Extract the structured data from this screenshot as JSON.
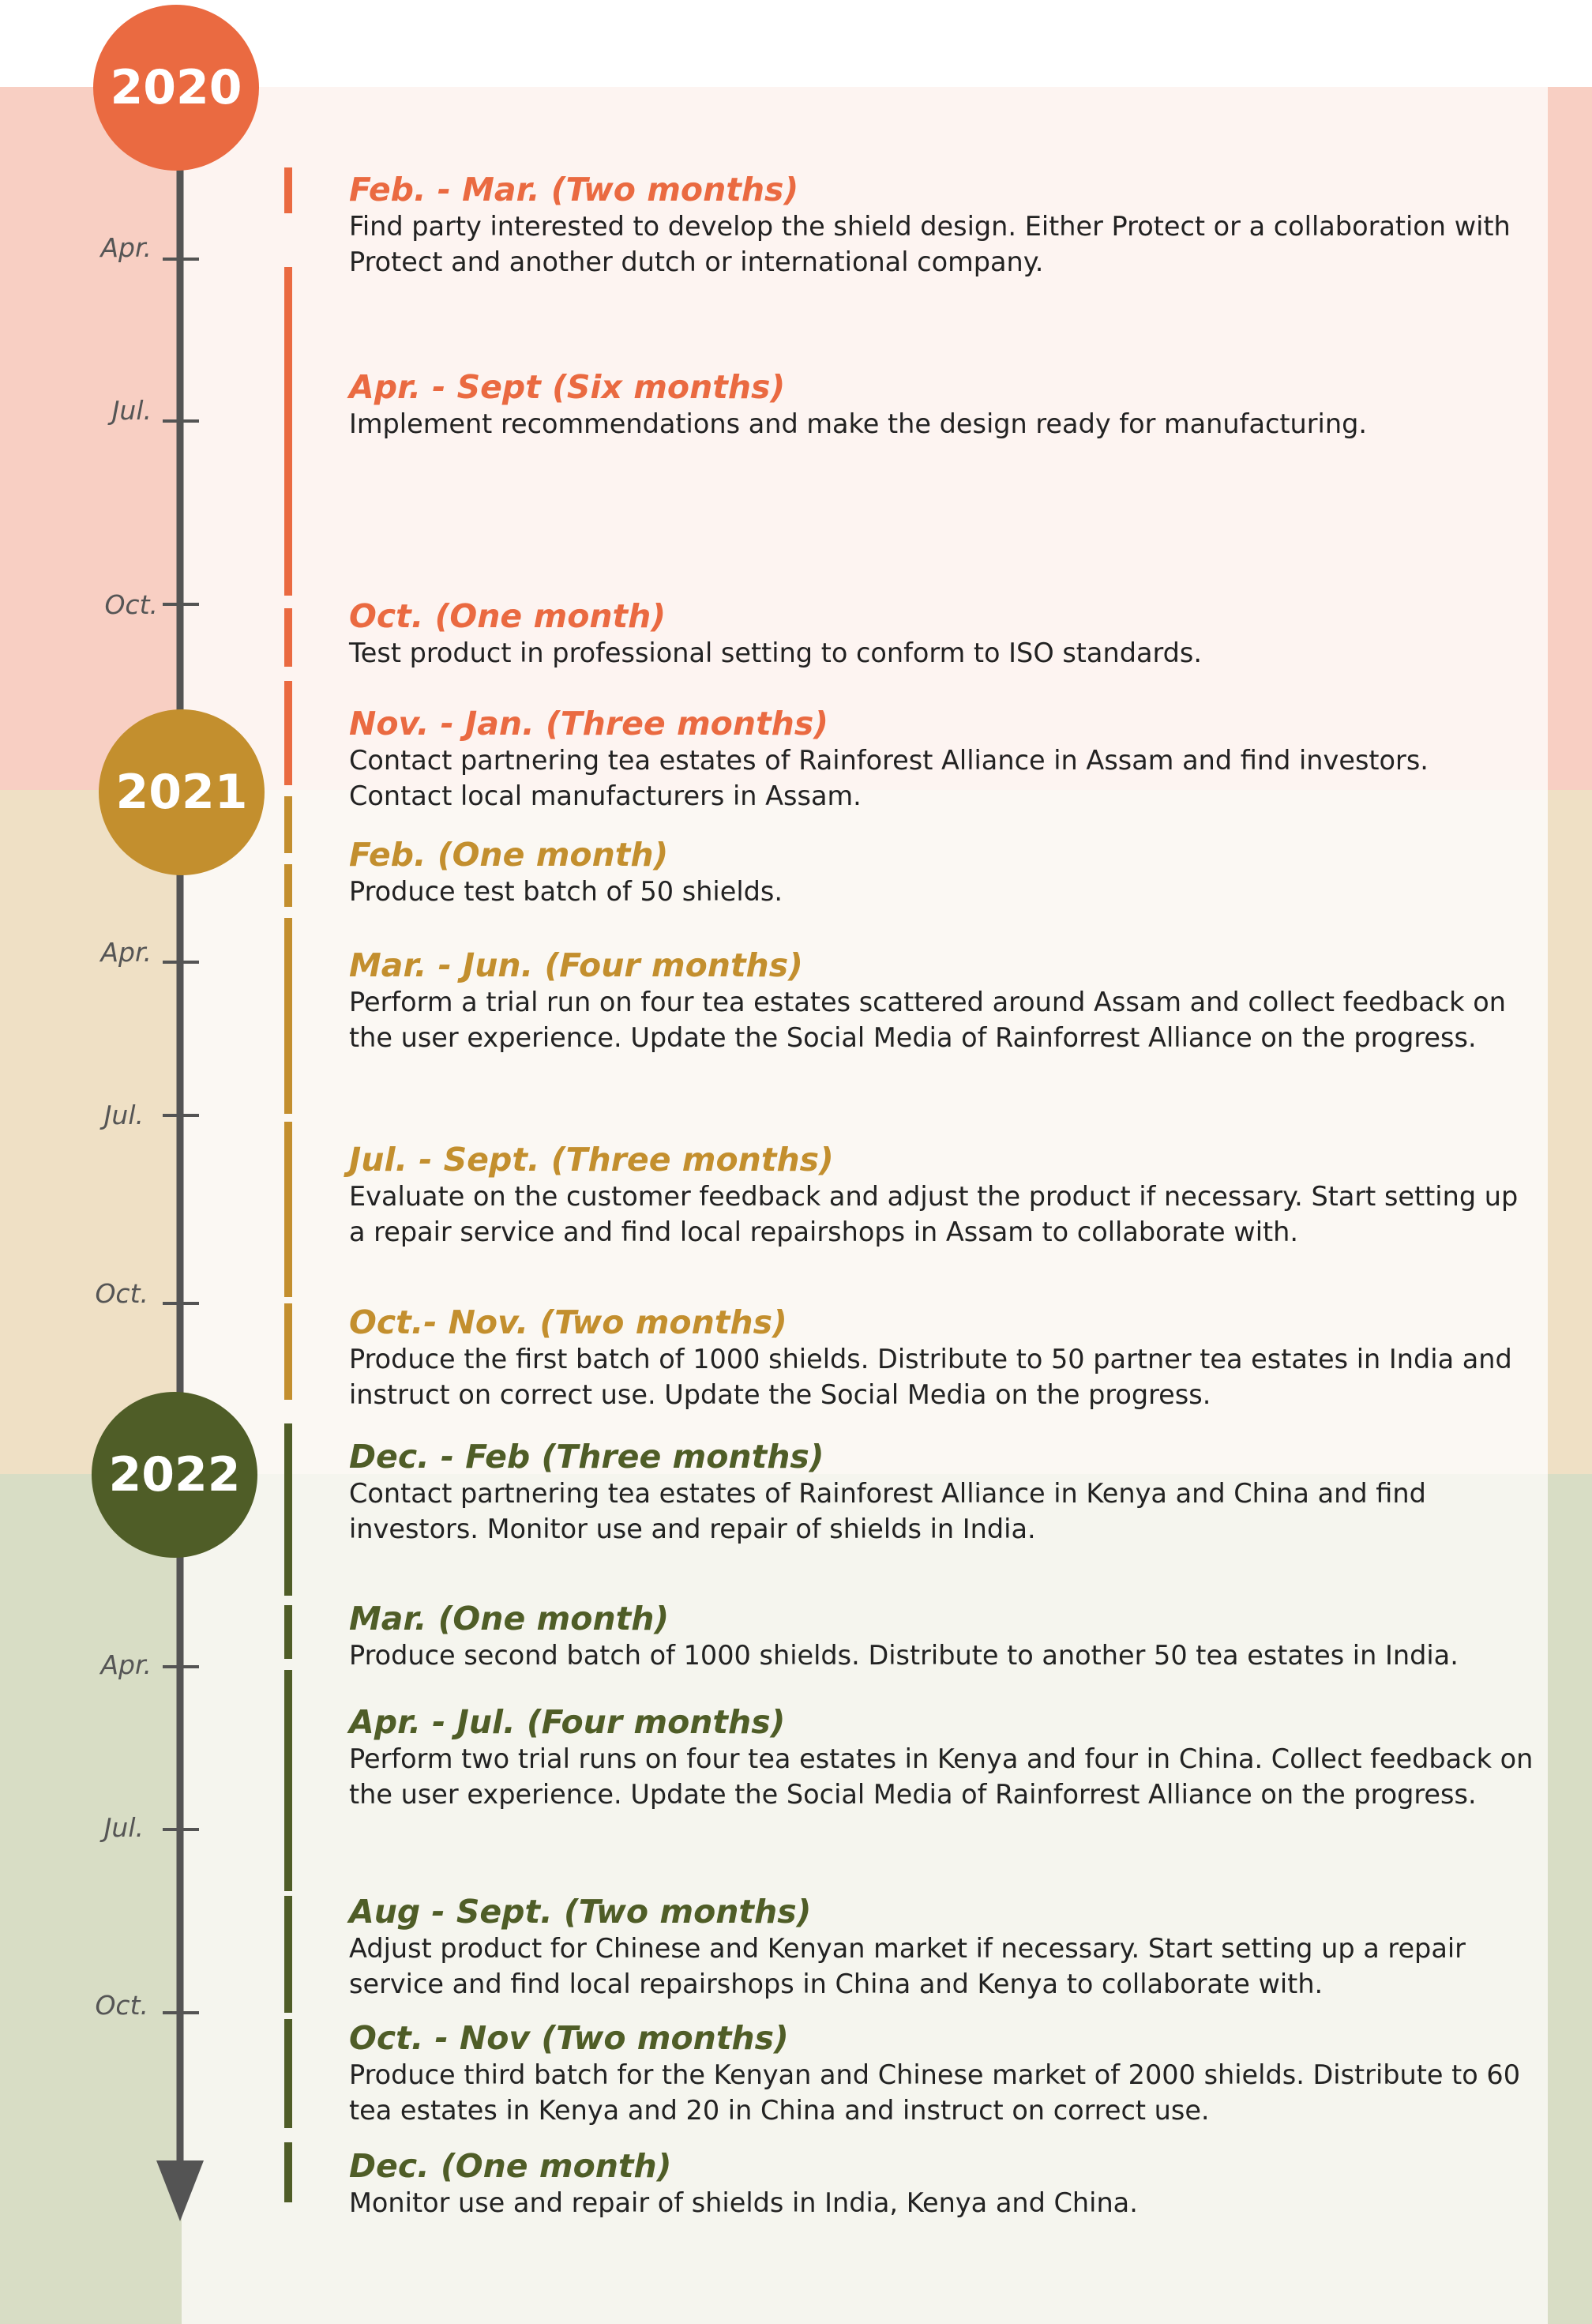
{
  "colors": {
    "2020": "#ea6a41",
    "2021": "#c38f2e",
    "2022": "#4f5d27",
    "axis": "#545454"
  },
  "years": [
    {
      "label": "2020"
    },
    {
      "label": "2021"
    },
    {
      "label": "2022"
    }
  ],
  "month_ticks": [
    "Apr.",
    "Jul.",
    "Oct."
  ],
  "entries": [
    {
      "title": "Feb. - Mar. (Two months)",
      "desc": "Find party interested to develop the shield design. Either Protect or a collaboration with Protect and another dutch or international company."
    },
    {
      "title": "Apr. - Sept (Six months)",
      "desc": "Implement recommendations and make the design ready for manufacturing."
    },
    {
      "title": "Oct. (One month)",
      "desc": "Test product in professional setting to conform to ISO standards."
    },
    {
      "title": "Nov. - Jan. (Three months)",
      "desc": "Contact partnering tea estates of Rainforest Alliance in Assam and find investors. Contact local manufacturers in Assam."
    },
    {
      "title": "Feb. (One month)",
      "desc": "Produce test batch of 50 shields."
    },
    {
      "title": "Mar. - Jun. (Four months)",
      "desc": "Perform a trial run on four tea estates scattered around Assam and collect feedback on the user experience. Update the Social Media of Rainforrest Alliance on the progress."
    },
    {
      "title": "Jul. - Sept. (Three months)",
      "desc": "Evaluate on the customer feedback and adjust the product if necessary. Start setting up a repair service and find local repairshops in Assam to collaborate with."
    },
    {
      "title": "Oct.- Nov. (Two months)",
      "desc": "Produce the first batch of 1000 shields. Distribute to 50 partner tea estates in India and instruct on correct use. Update the Social Media on the progress."
    },
    {
      "title": "Dec. - Feb (Three months)",
      "desc": "Contact partnering tea estates of Rainforest Alliance in Kenya and China and find investors. Monitor use and repair of shields in India."
    },
    {
      "title": "Mar. (One month)",
      "desc": "Produce second batch of 1000 shields. Distribute to another 50 tea estates in India."
    },
    {
      "title": "Apr. - Jul. (Four months)",
      "desc": "Perform two trial runs on four tea estates in Kenya and four in China. Collect feedback on the user experience. Update the Social Media of Rainforrest Alliance on the progress."
    },
    {
      "title": "Aug - Sept. (Two months)",
      "desc": "Adjust product for Chinese and Kenyan market if necessary. Start setting up a repair service and find local repairshops in China and Kenya to collaborate with."
    },
    {
      "title": "Oct. - Nov (Two months)",
      "desc": "Produce third batch for the Kenyan and Chinese market of 2000 shields. Distribute to 60 tea estates in Kenya and 20 in China and instruct on correct use."
    },
    {
      "title": "Dec. (One month)",
      "desc": "Monitor use and repair of shields in India, Kenya and China."
    }
  ]
}
